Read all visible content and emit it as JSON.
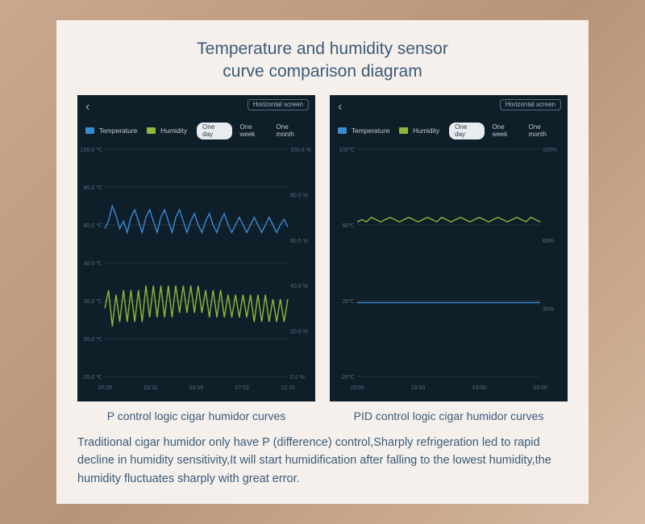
{
  "title_line1": "Temperature and humidity sensor",
  "title_line2": "curve comparison diagram",
  "description": "Traditional cigar humidor only have P (difference) control,Sharply refrigeration led to rapid decline in humidity sensitivity,It will start humidification after falling to the lowest humidity,the humidity fluctuates sharply with great error.",
  "colors": {
    "panel_bg": "#f5f0ec",
    "phone_bg": "#0f1f2a",
    "text_blue": "#3a5a7a",
    "temp_line": "#3a8ad4",
    "humid_line": "#8fb83a",
    "grid": "#2a3a48",
    "axis_label": "#5a6a78"
  },
  "shared_ui": {
    "back_glyph": "‹",
    "horizontal_btn": "Horizontal screen",
    "legend_temp": "Temperature",
    "legend_humid": "Humidity",
    "period_active": "One day",
    "period_week": "One week",
    "period_month": "One month"
  },
  "left": {
    "caption": "P control logic cigar humidor curves",
    "type": "line",
    "y_left": {
      "min": -20,
      "max": 100,
      "unit": "℃",
      "ticks": [
        -20,
        0,
        20,
        40,
        60,
        80,
        100
      ],
      "labels": [
        "-20.0 ℃",
        "00.0 ℃",
        "20.0 ℃",
        "40.0 ℃",
        "60.0 ℃",
        "80.0 ℃",
        "100.0 ℃"
      ]
    },
    "y_right": {
      "min": 0,
      "max": 100,
      "unit": "%",
      "ticks": [
        0,
        20,
        40,
        60,
        80,
        100
      ],
      "labels": [
        "0.0 %",
        "20.0 %",
        "40.0 %",
        "60.0 %",
        "80.0 %",
        "100.0 %"
      ]
    },
    "x_labels": [
      "20:29",
      "23:32",
      "03:16",
      "07:02",
      "12:15"
    ],
    "temp_series": [
      58,
      62,
      70,
      65,
      58,
      62,
      56,
      64,
      68,
      62,
      56,
      64,
      68,
      62,
      56,
      64,
      68,
      62,
      56,
      64,
      68,
      62,
      56,
      62,
      66,
      60,
      56,
      62,
      66,
      60,
      56,
      62,
      66,
      60,
      56,
      60,
      64,
      60,
      56,
      60,
      64,
      60,
      56,
      60,
      64,
      60,
      56,
      60,
      63,
      59
    ],
    "humid_series": [
      30,
      38,
      22,
      36,
      24,
      38,
      24,
      38,
      24,
      38,
      24,
      40,
      26,
      40,
      26,
      40,
      26,
      40,
      26,
      40,
      28,
      40,
      28,
      40,
      28,
      40,
      28,
      38,
      26,
      38,
      26,
      38,
      26,
      36,
      26,
      36,
      26,
      36,
      26,
      36,
      24,
      36,
      24,
      36,
      24,
      34,
      24,
      34,
      24,
      34
    ]
  },
  "right": {
    "caption": "PID control logic cigar humidor curves",
    "type": "line",
    "y_left": {
      "min": -20,
      "max": 100,
      "unit": "℃",
      "ticks": [
        -20,
        20,
        60,
        100
      ],
      "labels": [
        "-20℃",
        "20℃",
        "60℃",
        "100℃"
      ]
    },
    "y_right": {
      "min": 0,
      "max": 100,
      "unit": "%",
      "labels_at": [
        30,
        60,
        100
      ],
      "labels": [
        "30%",
        "60%",
        "100%"
      ]
    },
    "x_labels": [
      "15:00",
      "19:00",
      "23:00",
      "03:00"
    ],
    "temp_series": [
      19,
      19,
      19,
      19,
      19,
      19,
      19,
      19,
      19,
      19,
      19,
      19,
      19,
      19,
      19,
      19,
      19,
      19,
      19,
      19,
      19,
      19,
      19,
      19,
      19,
      19,
      19,
      19,
      19,
      19,
      19,
      19,
      19,
      19,
      19,
      19,
      19,
      19,
      19,
      19
    ],
    "humid_series": [
      68,
      69,
      68,
      70,
      69,
      68,
      69,
      70,
      69,
      68,
      69,
      70,
      69,
      68,
      69,
      70,
      69,
      68,
      70,
      69,
      68,
      69,
      70,
      69,
      68,
      69,
      70,
      69,
      68,
      69,
      70,
      69,
      68,
      69,
      70,
      69,
      68,
      70,
      69,
      68
    ]
  }
}
